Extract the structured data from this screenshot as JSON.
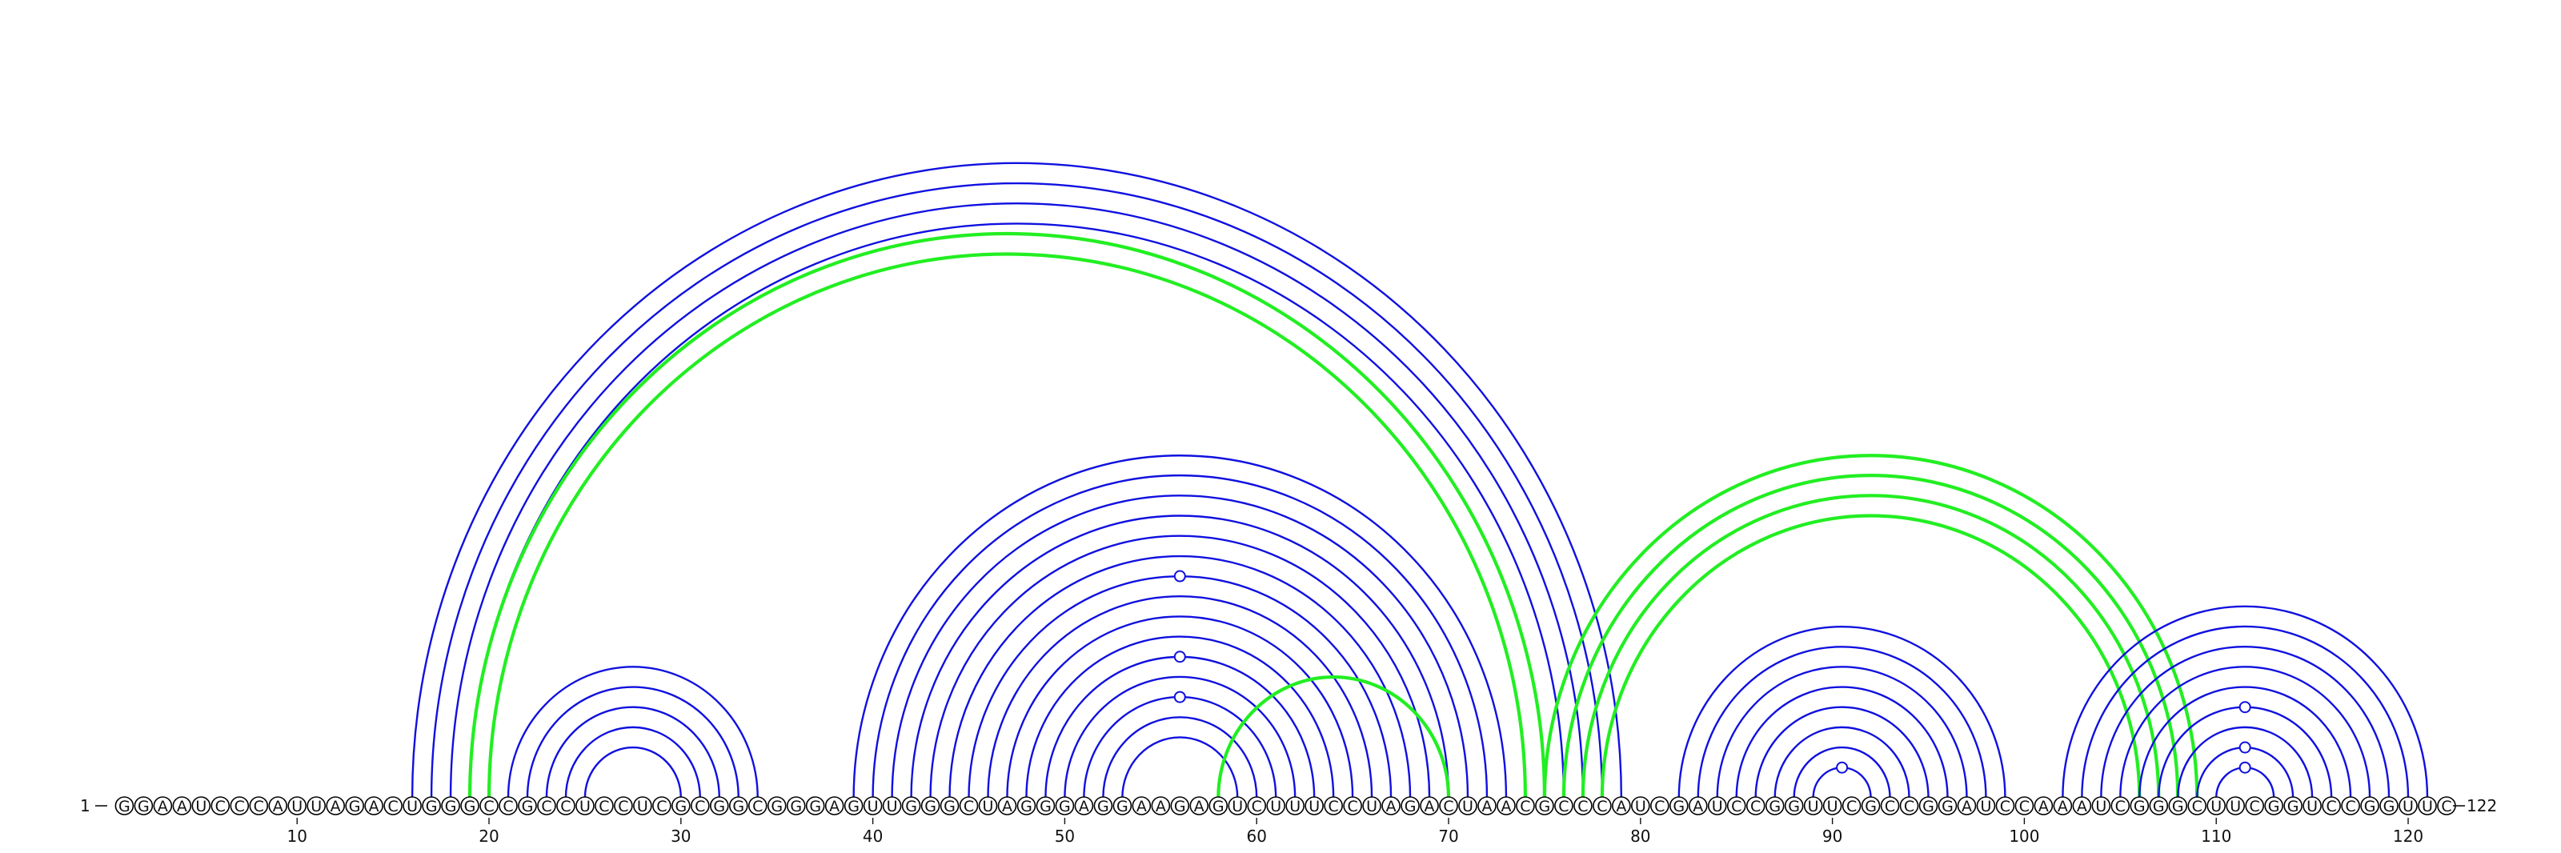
{
  "sequence": "GGAAUCCCAUUAGACUGGGCCGCCUCCUCGCGGCGGGAGUUGGGCUAGGGAGGAAGAGUCUUUCCUAGACUAACGCCCAUCGAUCCGGUUCGCCGGAUCCAAAUCGGGCUUCGGUCCGGUUC",
  "start_label": "1",
  "end_label": "122",
  "ticks": [
    "10",
    "20",
    "30",
    "40",
    "50",
    "60",
    "70",
    "80",
    "90",
    "100",
    "110",
    "120"
  ],
  "colors": {
    "nested_helix": "#1010e0",
    "pseudoknot_helix": "#22ee22",
    "nucleotide_stroke": "#000000"
  },
  "helices": [
    {
      "kind": "nested",
      "pairs": [
        [
          16,
          79
        ],
        [
          17,
          78
        ],
        [
          18,
          77
        ],
        [
          19,
          76
        ]
      ]
    },
    {
      "kind": "pseudoknot",
      "pairs": [
        [
          19,
          75
        ],
        [
          20,
          74
        ]
      ]
    },
    {
      "kind": "nested",
      "pairs": [
        [
          21,
          34
        ],
        [
          22,
          33
        ],
        [
          23,
          32
        ],
        [
          24,
          31
        ],
        [
          25,
          30
        ]
      ]
    },
    {
      "kind": "nested",
      "pairs": [
        [
          39,
          73
        ],
        [
          40,
          72
        ],
        [
          41,
          71
        ],
        [
          42,
          70
        ],
        [
          43,
          69
        ],
        [
          44,
          68
        ],
        [
          45,
          67
        ],
        [
          46,
          66
        ],
        [
          47,
          65
        ],
        [
          48,
          64
        ],
        [
          49,
          63
        ],
        [
          50,
          62
        ],
        [
          51,
          61
        ],
        [
          52,
          60
        ],
        [
          53,
          59
        ]
      ]
    },
    {
      "kind": "pseudoknot",
      "pairs": [
        [
          58,
          70
        ]
      ]
    },
    {
      "kind": "pseudoknot",
      "pairs": [
        [
          75,
          109
        ],
        [
          76,
          108
        ],
        [
          77,
          107
        ],
        [
          78,
          106
        ]
      ]
    },
    {
      "kind": "nested",
      "pairs": [
        [
          82,
          99
        ],
        [
          83,
          98
        ],
        [
          84,
          97
        ],
        [
          85,
          96
        ],
        [
          86,
          95
        ],
        [
          87,
          94
        ],
        [
          88,
          93
        ],
        [
          89,
          92
        ]
      ]
    },
    {
      "kind": "nested",
      "pairs": [
        [
          102,
          121
        ],
        [
          103,
          120
        ],
        [
          104,
          119
        ],
        [
          105,
          118
        ],
        [
          106,
          117
        ],
        [
          107,
          116
        ],
        [
          108,
          115
        ],
        [
          109,
          114
        ],
        [
          110,
          113
        ]
      ]
    }
  ],
  "wobble_pairs": [
    [
      51,
      61
    ],
    [
      49,
      63
    ],
    [
      45,
      67
    ],
    [
      89,
      92
    ],
    [
      110,
      113
    ],
    [
      109,
      114
    ],
    [
      107,
      116
    ]
  ]
}
